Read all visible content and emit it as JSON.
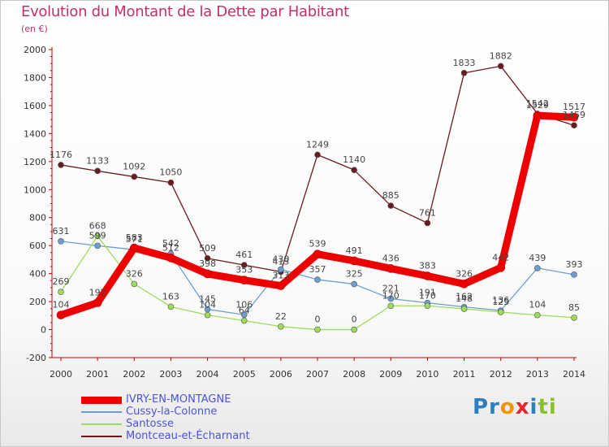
{
  "title": "Evolution du Montant de la Dette par Habitant",
  "unit": "(en €)",
  "brand": {
    "segments": [
      {
        "text": "Pr",
        "color": "#2d7fc1"
      },
      {
        "text": "o",
        "color": "#f29400"
      },
      {
        "text": "x",
        "color": "#e8252d"
      },
      {
        "text": "i",
        "color": "#2d7fc1"
      },
      {
        "text": "ti",
        "color": "#8bbf2d"
      }
    ]
  },
  "chart_data": {
    "type": "line",
    "x": [
      "2000",
      "2001",
      "2002",
      "2003",
      "2004",
      "2005",
      "2006",
      "2007",
      "2008",
      "2009",
      "2010",
      "2011",
      "2012",
      "2013",
      "2014"
    ],
    "ylim": [
      -200,
      2000
    ],
    "yticks": [
      "-200",
      "0",
      "200",
      "400",
      "600",
      "800",
      "1000",
      "1200",
      "1400",
      "1600",
      "1800",
      "2000"
    ],
    "grid": false,
    "legend_position": "bottom-left",
    "series": [
      {
        "name": "IVRY-EN-MONTAGNE",
        "color": "#ee0000",
        "width": 9,
        "values": [
          104,
          192,
          583,
          512,
          398,
          353,
          313,
          539,
          491,
          436,
          383,
          326,
          442,
          1529,
          1517
        ],
        "labels": [
          "104",
          "192",
          "583",
          "512",
          "398",
          "353",
          "313",
          "539",
          "491",
          "436",
          "383",
          "326",
          "442",
          "1529",
          "1517"
        ]
      },
      {
        "name": "Cussy-la-Colonne",
        "color": "#6a9fd0",
        "width": 1.3,
        "values": [
          631,
          599,
          571,
          542,
          145,
          106,
          430,
          357,
          325,
          221,
          191,
          162,
          136,
          439,
          393
        ],
        "labels": [
          "631",
          "599",
          "571",
          "542",
          "145",
          "106",
          "430",
          "357",
          "325",
          "221",
          "191",
          "162",
          "136",
          "439",
          "393"
        ]
      },
      {
        "name": "Santosse",
        "color": "#9ddc5a",
        "width": 1.3,
        "values": [
          269,
          668,
          326,
          163,
          104,
          64,
          22,
          0,
          0,
          170,
          170,
          148,
          125,
          104,
          85
        ],
        "labels": [
          "269",
          "668",
          "326",
          "163",
          "104",
          "64",
          "22",
          "0",
          "0",
          "170",
          "170",
          "148",
          "125",
          "104",
          "85"
        ]
      },
      {
        "name": "Montceau-et-Écharnant",
        "color": "#6b1a1f",
        "width": 1.3,
        "values": [
          1176,
          1133,
          1092,
          1050,
          509,
          461,
          413,
          1249,
          1140,
          885,
          761,
          1833,
          1882,
          1542,
          1459
        ],
        "labels": [
          "1176",
          "1133",
          "1092",
          "1050",
          "509",
          "461",
          "413",
          "1249",
          "1140",
          "885",
          "761",
          "1833",
          "1882",
          "1542",
          "1459"
        ]
      }
    ]
  }
}
